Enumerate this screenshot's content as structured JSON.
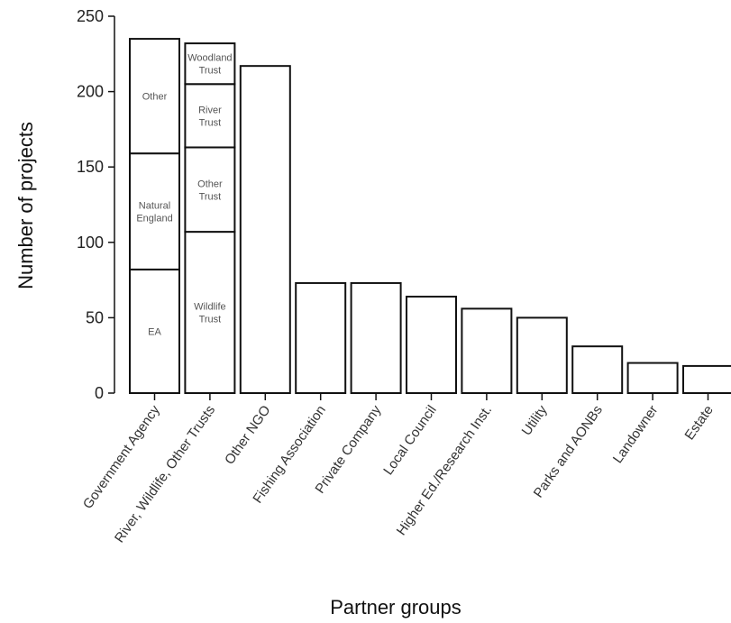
{
  "chart_data": {
    "type": "bar",
    "stacked": true,
    "xlabel": "Partner groups",
    "ylabel": "Number of projects",
    "ylim": [
      0,
      250
    ],
    "yticks": [
      0,
      50,
      100,
      150,
      200,
      250
    ],
    "grid": false,
    "legend": "none",
    "bar_fill": "#ffffff",
    "bar_stroke": "#111111",
    "categories": [
      "Government Agency",
      "River, Wildlife, Other Trusts",
      "Other NGO",
      "Fishing Association",
      "Private Company",
      "Local Council",
      "Higher Ed./Research Inst.",
      "Utility",
      "Parks and AONBs",
      "Landowner",
      "Estate"
    ],
    "bars": [
      {
        "category": "Government Agency",
        "segments": [
          {
            "label": [
              "EA"
            ],
            "value": 82
          },
          {
            "label": [
              "Natural",
              "England"
            ],
            "value": 77
          },
          {
            "label": [
              "Other"
            ],
            "value": 76
          }
        ]
      },
      {
        "category": "River, Wildlife, Other Trusts",
        "segments": [
          {
            "label": [
              "Wildlife",
              "Trust"
            ],
            "value": 107
          },
          {
            "label": [
              "Other",
              "Trust"
            ],
            "value": 56
          },
          {
            "label": [
              "River",
              "Trust"
            ],
            "value": 42
          },
          {
            "label": [
              "Woodland",
              "Trust"
            ],
            "value": 27
          }
        ]
      },
      {
        "category": "Other NGO",
        "segments": [
          {
            "label": [],
            "value": 217
          }
        ]
      },
      {
        "category": "Fishing Association",
        "segments": [
          {
            "label": [],
            "value": 73
          }
        ]
      },
      {
        "category": "Private Company",
        "segments": [
          {
            "label": [],
            "value": 73
          }
        ]
      },
      {
        "category": "Local Council",
        "segments": [
          {
            "label": [],
            "value": 64
          }
        ]
      },
      {
        "category": "Higher Ed./Research Inst.",
        "segments": [
          {
            "label": [],
            "value": 56
          }
        ]
      },
      {
        "category": "Utility",
        "segments": [
          {
            "label": [],
            "value": 50
          }
        ]
      },
      {
        "category": "Parks and AONBs",
        "segments": [
          {
            "label": [],
            "value": 31
          }
        ]
      },
      {
        "category": "Landowner",
        "segments": [
          {
            "label": [],
            "value": 20
          }
        ]
      },
      {
        "category": "Estate",
        "segments": [
          {
            "label": [],
            "value": 18
          }
        ]
      }
    ]
  }
}
